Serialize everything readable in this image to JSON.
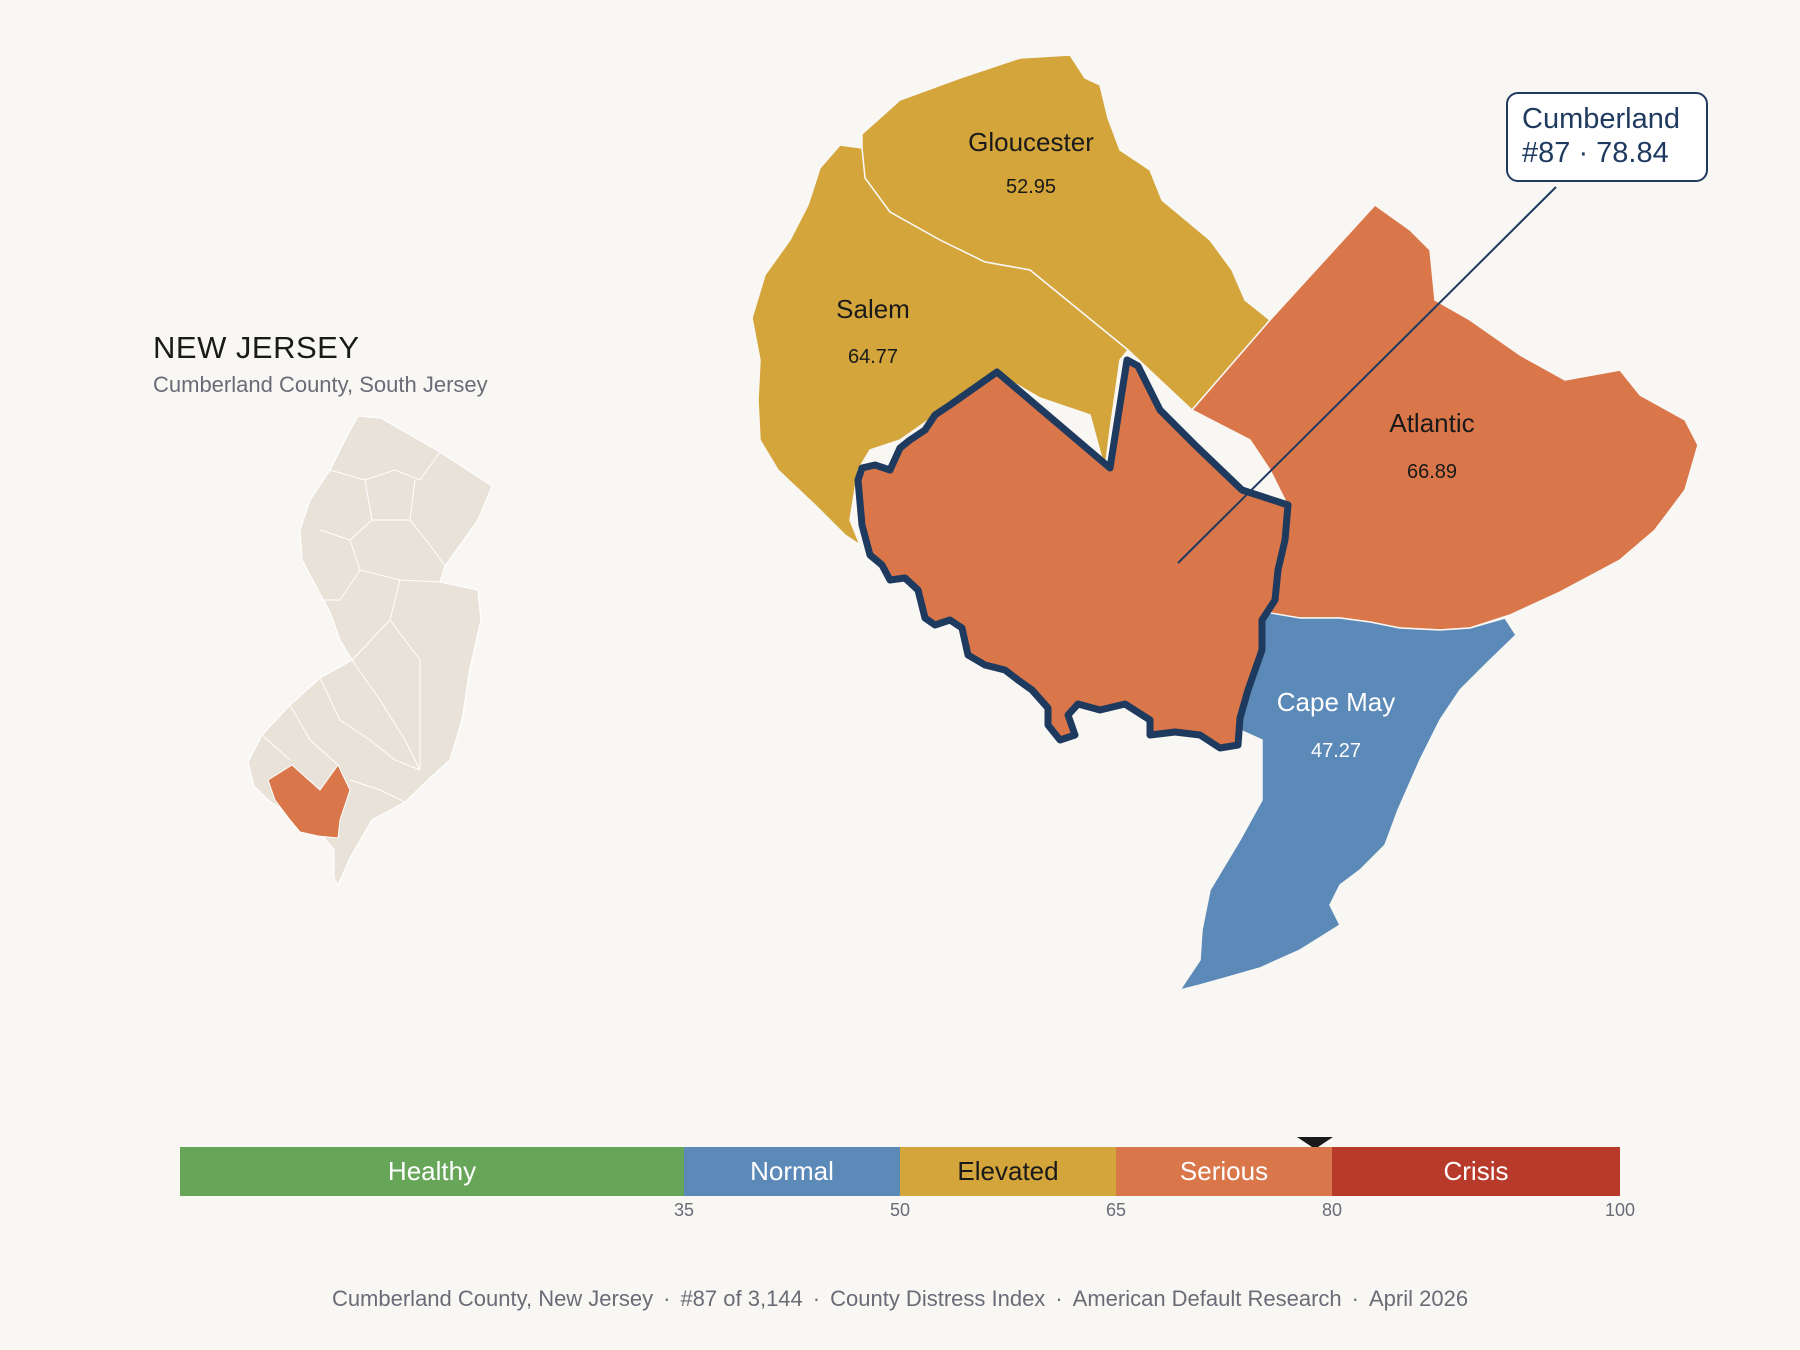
{
  "inset": {
    "title": "NEW JERSEY",
    "subtitle": "Cumberland County, South Jersey"
  },
  "colors": {
    "background": "#f9f7f3",
    "healthy": "#67a659",
    "normal": "#5b89b8",
    "elevated": "#d4a53b",
    "serious": "#d9774a",
    "crisis": "#b83a2b",
    "inset_fill": "#e8e2d8",
    "highlight_outline": "#1f3a5f"
  },
  "counties": [
    {
      "name": "Gloucester",
      "score": "52.95",
      "category": "elevated"
    },
    {
      "name": "Salem",
      "score": "64.77",
      "category": "elevated"
    },
    {
      "name": "Atlantic",
      "score": "66.89",
      "category": "serious"
    },
    {
      "name": "Cape May",
      "score": "47.27",
      "category": "normal"
    },
    {
      "name": "Cumberland",
      "score": "78.84",
      "category": "serious",
      "highlighted": true
    }
  ],
  "callout": {
    "name": "Cumberland",
    "rank_score": "#87 · 78.84"
  },
  "scale": {
    "segments": [
      {
        "label": "Healthy",
        "from": 0,
        "to": 35
      },
      {
        "label": "Normal",
        "from": 35,
        "to": 50
      },
      {
        "label": "Elevated",
        "from": 50,
        "to": 65
      },
      {
        "label": "Serious",
        "from": 65,
        "to": 80
      },
      {
        "label": "Crisis",
        "from": 80,
        "to": 100
      }
    ],
    "ticks": [
      "35",
      "50",
      "65",
      "80",
      "100"
    ],
    "marker_value": 78.84
  },
  "footer": {
    "county": "Cumberland County, New Jersey",
    "rank": "#87 of 3,144",
    "index": "County Distress Index",
    "source": "American Default Research",
    "date": "April 2026"
  }
}
